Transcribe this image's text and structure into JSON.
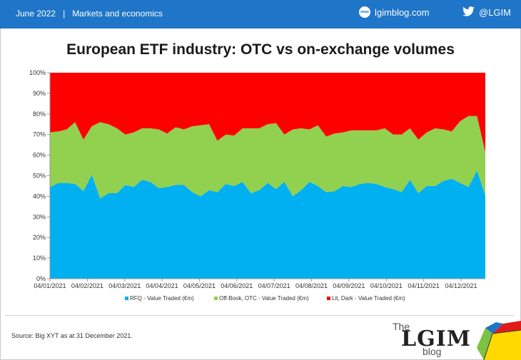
{
  "header": {
    "date": "June 2022",
    "section": "Markets and economics",
    "separator": "|",
    "blog_site": "lgimblog.com",
    "www_badge": "www",
    "twitter": "@LGIM"
  },
  "source_note": "Source: Big XYT  as at 31 December 2021.",
  "logo": {
    "the": "The",
    "brand": "LGIM",
    "blog": "blog"
  },
  "chart_data": {
    "type": "area",
    "stacked": true,
    "percent": true,
    "title": "European ETF industry: OTC vs on-exchange volumes",
    "xlabel": "",
    "ylabel": "",
    "ylim": [
      0,
      100
    ],
    "yticks": [
      "0%",
      "10%",
      "20%",
      "30%",
      "40%",
      "50%",
      "60%",
      "70%",
      "80%",
      "90%",
      "100%"
    ],
    "xticks": [
      "04/01/2021",
      "04/02/2021",
      "04/03/2021",
      "04/04/2021",
      "04/05/2021",
      "04/06/2021",
      "04/07/2021",
      "04/08/2021",
      "04/09/2021",
      "04/10/2021",
      "04/11/2021",
      "04/12/2021"
    ],
    "legend_position": "bottom",
    "grid": false,
    "series": [
      {
        "name": "RFQ - Value Traded (€m)",
        "color": "#00b0f0",
        "values": [
          44.5,
          46.5,
          46.5,
          46,
          42.5,
          50.5,
          39,
          41.5,
          41.5,
          45.5,
          44.5,
          48,
          47,
          44,
          44.5,
          45.5,
          45.5,
          42,
          40,
          43,
          42,
          46,
          45,
          47,
          41.5,
          43,
          46.5,
          43.5,
          47,
          40,
          43,
          47,
          45,
          42,
          42.5,
          45,
          44.5,
          46,
          46.5,
          46,
          44.5,
          43.5,
          42,
          48,
          41.5,
          45,
          45,
          47.5,
          48.5,
          46.5,
          44.5,
          52.5,
          40.5
        ]
      },
      {
        "name": "Off-Book, OTC - Value Traded (€m)",
        "color": "#92d050",
        "values": [
          26.5,
          25,
          26,
          30,
          25,
          23.5,
          37,
          33.5,
          31.5,
          24.5,
          26.5,
          25,
          26,
          28.5,
          26,
          28,
          27,
          32,
          34.5,
          32,
          25,
          24,
          24.5,
          26,
          31.5,
          30,
          28.5,
          32,
          23,
          32.5,
          30,
          25.5,
          29.5,
          27,
          28,
          26,
          27.5,
          26,
          25.5,
          26,
          28.5,
          26.5,
          28,
          25,
          26,
          26,
          28,
          25,
          23,
          30,
          34.5,
          26.5,
          21
        ]
      },
      {
        "name": "Lit, Dark - Value Traded (€m)",
        "color": "#ff0000",
        "values": [
          29,
          28.5,
          27.5,
          24,
          32.5,
          26,
          24,
          25,
          27,
          30,
          29,
          27,
          27,
          27.5,
          29.5,
          26.5,
          27.5,
          26,
          25.5,
          25,
          33,
          30,
          30.5,
          27,
          27,
          27,
          25,
          24.5,
          30,
          27.5,
          27,
          27.5,
          25.5,
          31,
          29.5,
          29,
          28,
          28,
          28,
          28,
          27,
          30,
          30,
          27,
          32.5,
          29,
          27,
          27.5,
          28.5,
          23.5,
          21,
          21,
          38.5
        ]
      }
    ]
  }
}
